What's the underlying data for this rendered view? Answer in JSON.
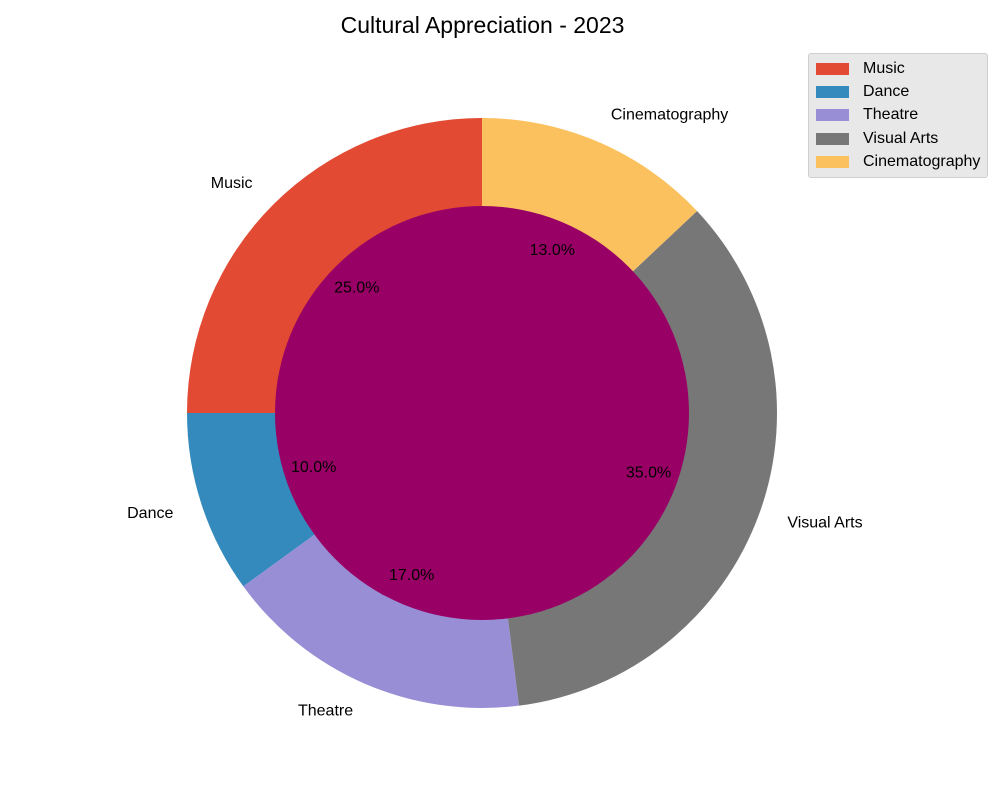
{
  "chart_data": {
    "type": "pie",
    "title": "Cultural Appreciation - 2023",
    "categories": [
      "Music",
      "Dance",
      "Theatre",
      "Visual Arts",
      "Cinematography"
    ],
    "values": [
      25,
      10,
      17,
      35,
      13
    ],
    "percent_labels": [
      "25.0%",
      "10.0%",
      "17.0%",
      "35.0%",
      "13.0%"
    ],
    "colors": [
      "#E24A33",
      "#348ABD",
      "#988ED5",
      "#777777",
      "#FBC15E"
    ],
    "center_color": "#990066",
    "start_angle_deg": 90,
    "direction": "counterclockwise",
    "legend": {
      "placement": "top-right",
      "entries": [
        "Music",
        "Dance",
        "Theatre",
        "Visual Arts",
        "Cinematography"
      ]
    },
    "grid": false
  }
}
